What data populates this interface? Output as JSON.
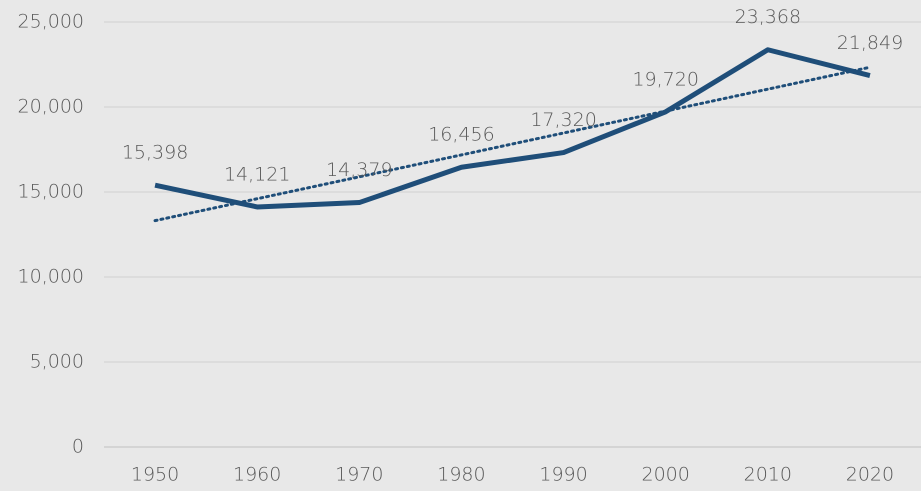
{
  "chart_data": {
    "type": "line",
    "categories": [
      "1950",
      "1960",
      "1970",
      "1980",
      "1990",
      "2000",
      "2010",
      "2020"
    ],
    "series": [
      {
        "color": "#1f4e79",
        "values": [
          15398,
          14121,
          14379,
          16456,
          17320,
          19720,
          23368,
          21849
        ],
        "value_labels": [
          "15,398",
          "14,121",
          "14,379",
          "16,456",
          "17,320",
          "19,720",
          "23,368",
          "21,849"
        ]
      }
    ],
    "trendline": {
      "style": "dotted",
      "color": "#1f4e79",
      "values": [
        13315,
        14604,
        15893,
        17182,
        18471,
        19760,
        21049,
        22338
      ]
    },
    "ylim": [
      0,
      25000
    ],
    "yticks": [
      0,
      {
        "value": 5000,
        "label": "5,000"
      },
      {
        "value": 10000,
        "label": "10,000"
      },
      {
        "value": 15000,
        "label": "15,000"
      },
      {
        "value": 20000,
        "label": "20,000"
      },
      {
        "value": 25000,
        "label": "25,000"
      }
    ],
    "grid": true
  }
}
